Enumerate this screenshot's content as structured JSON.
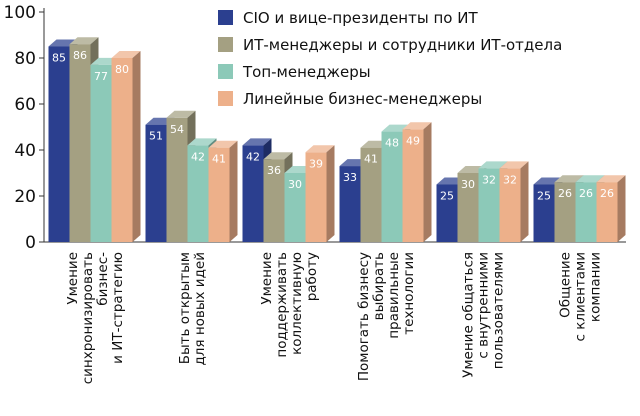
{
  "chart_data": {
    "type": "bar",
    "categories": [
      [
        "Умение",
        "синхронизировать",
        "бизнес-",
        "и ИТ-стратегию"
      ],
      [
        "Быть открытым",
        "для новых идей"
      ],
      [
        "Умение",
        "поддерживать",
        "коллективную",
        "работу"
      ],
      [
        "Помогать бизнесу",
        "выбирать",
        "правильные",
        "технологии"
      ],
      [
        "Умение общаться",
        "с внутренними",
        "пользователями"
      ],
      [
        "Общение",
        "с клиентами",
        "компании"
      ]
    ],
    "series": [
      {
        "name": "CIO и вице-президенты по ИТ",
        "values": [
          85,
          51,
          42,
          33,
          25,
          25
        ],
        "color": "#2b3f8f"
      },
      {
        "name": "ИТ-менеджеры и сотрудники ИТ-отдела",
        "values": [
          86,
          54,
          36,
          41,
          30,
          26
        ],
        "color": "#a4a082"
      },
      {
        "name": "Топ-менеджеры",
        "values": [
          77,
          42,
          30,
          48,
          32,
          26
        ],
        "color": "#8cc9b8"
      },
      {
        "name": "Линейные бизнес-менеджеры",
        "values": [
          80,
          41,
          39,
          49,
          32,
          26
        ],
        "color": "#edb08a"
      }
    ],
    "yticks": [
      0,
      20,
      40,
      60,
      80,
      100
    ],
    "ylim": [
      0,
      100
    ],
    "grid": false,
    "legend_position": "top-right"
  }
}
